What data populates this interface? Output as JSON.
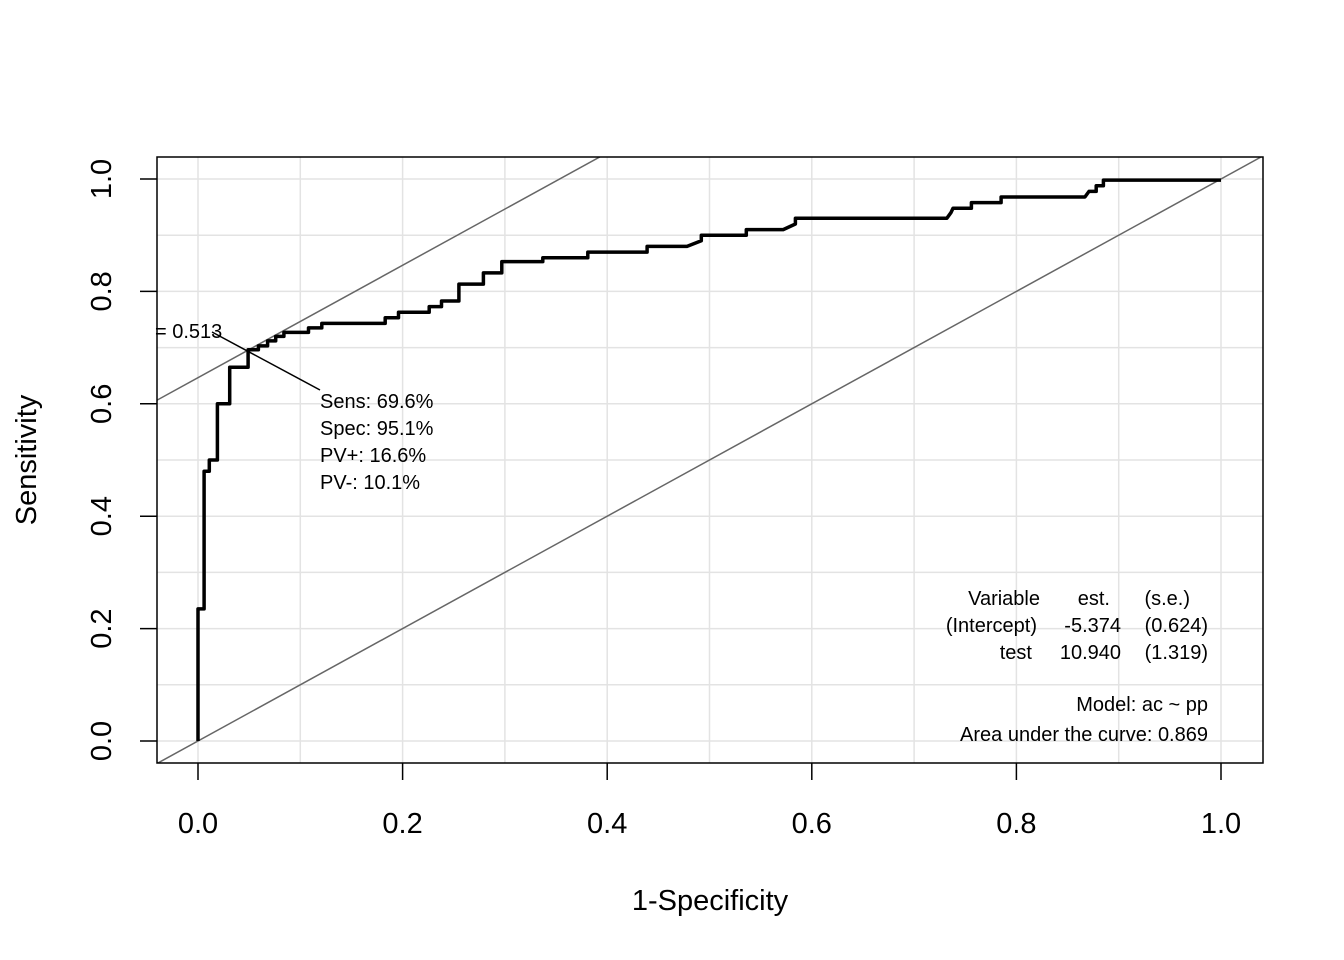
{
  "chart_data": {
    "type": "line",
    "xlabel": "1-Specificity",
    "ylabel": "Sensitivity",
    "xlim": [
      -0.04,
      1.04
    ],
    "ylim": [
      -0.04,
      1.04
    ],
    "x_ticks": [
      "0.0",
      "0.2",
      "0.4",
      "0.6",
      "0.8",
      "1.0"
    ],
    "y_ticks": [
      "0.0",
      "0.2",
      "0.4",
      "0.6",
      "0.8",
      "1.0"
    ],
    "grid": true,
    "series": [
      {
        "roc_step": true,
        "points": [
          [
            0.0,
            0.0
          ],
          [
            0.0,
            0.235
          ],
          [
            0.006,
            0.235
          ],
          [
            0.006,
            0.48
          ],
          [
            0.011,
            0.48
          ],
          [
            0.011,
            0.5
          ],
          [
            0.019,
            0.5
          ],
          [
            0.019,
            0.6
          ],
          [
            0.031,
            0.6
          ],
          [
            0.031,
            0.665
          ],
          [
            0.049,
            0.665
          ],
          [
            0.049,
            0.696
          ],
          [
            0.059,
            0.696
          ],
          [
            0.059,
            0.703
          ],
          [
            0.068,
            0.703
          ],
          [
            0.068,
            0.712
          ],
          [
            0.076,
            0.712
          ],
          [
            0.076,
            0.72
          ],
          [
            0.084,
            0.72
          ],
          [
            0.084,
            0.727
          ],
          [
            0.108,
            0.727
          ],
          [
            0.108,
            0.735
          ],
          [
            0.121,
            0.735
          ],
          [
            0.121,
            0.743
          ],
          [
            0.183,
            0.743
          ],
          [
            0.183,
            0.753
          ],
          [
            0.196,
            0.753
          ],
          [
            0.196,
            0.763
          ],
          [
            0.226,
            0.763
          ],
          [
            0.226,
            0.773
          ],
          [
            0.238,
            0.773
          ],
          [
            0.238,
            0.783
          ],
          [
            0.255,
            0.783
          ],
          [
            0.255,
            0.813
          ],
          [
            0.279,
            0.813
          ],
          [
            0.279,
            0.833
          ],
          [
            0.297,
            0.833
          ],
          [
            0.297,
            0.853
          ],
          [
            0.337,
            0.853
          ],
          [
            0.337,
            0.86
          ],
          [
            0.381,
            0.86
          ],
          [
            0.381,
            0.87
          ],
          [
            0.439,
            0.87
          ],
          [
            0.439,
            0.88
          ],
          [
            0.478,
            0.88
          ],
          [
            0.492,
            0.89
          ],
          [
            0.492,
            0.9
          ],
          [
            0.536,
            0.9
          ],
          [
            0.536,
            0.91
          ],
          [
            0.572,
            0.91
          ],
          [
            0.584,
            0.92
          ],
          [
            0.584,
            0.93
          ],
          [
            0.732,
            0.93
          ],
          [
            0.736,
            0.94
          ],
          [
            0.738,
            0.948
          ],
          [
            0.756,
            0.948
          ],
          [
            0.756,
            0.958
          ],
          [
            0.785,
            0.958
          ],
          [
            0.785,
            0.968
          ],
          [
            0.867,
            0.968
          ],
          [
            0.871,
            0.978
          ],
          [
            0.878,
            0.978
          ],
          [
            0.878,
            0.988
          ],
          [
            0.885,
            0.988
          ],
          [
            0.885,
            0.998
          ],
          [
            1.0,
            0.998
          ]
        ]
      }
    ],
    "diagonal": [
      [
        0,
        0
      ],
      [
        1,
        1
      ]
    ],
    "tangent_line": {
      "intercept": 0.6465,
      "slope": 1.0
    },
    "optimal_point": [
      0.049,
      0.696
    ],
    "annotation": {
      "lr_label": "= 0.513",
      "sens": "Sens: 69.6%",
      "spec": "Spec: 95.1%",
      "pvpos": "PV+: 16.6%",
      "pvneg": "PV-: 10.1%"
    },
    "model_table": {
      "headers": [
        "Variable",
        "est.",
        "(s.e.)"
      ],
      "rows": [
        [
          "(Intercept)",
          "-5.374",
          "(0.624)"
        ],
        [
          "test",
          "10.940",
          "(1.319)"
        ]
      ],
      "model": "Model:  ac ~ pp",
      "auc": "Area under the curve: 0.869"
    }
  }
}
